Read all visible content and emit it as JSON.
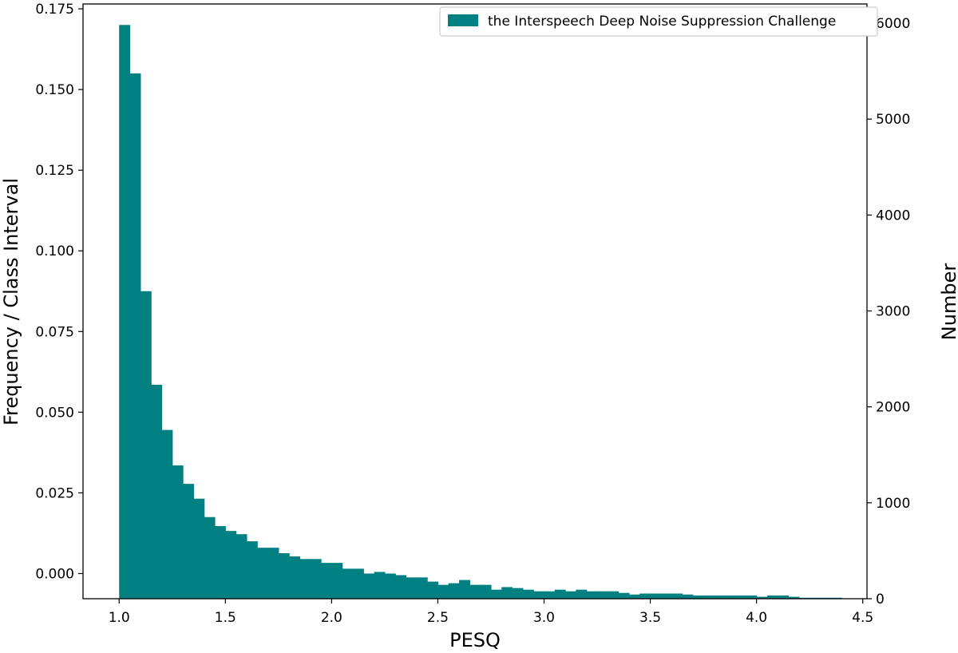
{
  "chart_data": {
    "type": "bar",
    "xlabel": "PESQ",
    "ylabel_left": "Frequency / Class Interval",
    "ylabel_right": "Number",
    "legend": {
      "label": "the Interspeech Deep Noise Suppression Challenge",
      "position": "top-right"
    },
    "color": "#008080",
    "grid": false,
    "xlim": [
      0.83,
      4.52
    ],
    "ylim_left": [
      -0.0078,
      0.1765
    ],
    "ylim_right": [
      0,
      6200
    ],
    "x_ticks": [
      "1.0",
      "1.5",
      "2.0",
      "2.5",
      "3.0",
      "3.5",
      "4.0",
      "4.5"
    ],
    "y_left_ticks": [
      "0.000",
      "0.025",
      "0.050",
      "0.075",
      "0.100",
      "0.125",
      "0.150",
      "0.175"
    ],
    "y_right_ticks": [
      "0",
      "1000",
      "2000",
      "3000",
      "4000",
      "5000",
      "6000"
    ],
    "bins": {
      "start": 1.0,
      "end": 4.4,
      "width": 0.05
    },
    "values": [
      0.17,
      0.155,
      0.0875,
      0.0585,
      0.0445,
      0.0335,
      0.0278,
      0.0232,
      0.0175,
      0.0147,
      0.0132,
      0.0122,
      0.01,
      0.008,
      0.008,
      0.0063,
      0.0053,
      0.0045,
      0.0045,
      0.0033,
      0.0033,
      0.0015,
      0.0015,
      0.0,
      0.0005,
      0.0,
      -0.0005,
      -0.0012,
      -0.0012,
      -0.0025,
      -0.0035,
      -0.003,
      -0.002,
      -0.0035,
      -0.0035,
      -0.005,
      -0.0042,
      -0.0045,
      -0.005,
      -0.0055,
      -0.0055,
      -0.005,
      -0.0055,
      -0.005,
      -0.0055,
      -0.0055,
      -0.0055,
      -0.006,
      -0.0065,
      -0.0062,
      -0.0062,
      -0.0062,
      -0.0062,
      -0.0065,
      -0.0068,
      -0.0068,
      -0.0068,
      -0.0068,
      -0.0068,
      -0.0068,
      -0.0072,
      -0.0068,
      -0.0068,
      -0.0072,
      -0.0075,
      -0.0075,
      -0.0075,
      -0.0075
    ]
  }
}
